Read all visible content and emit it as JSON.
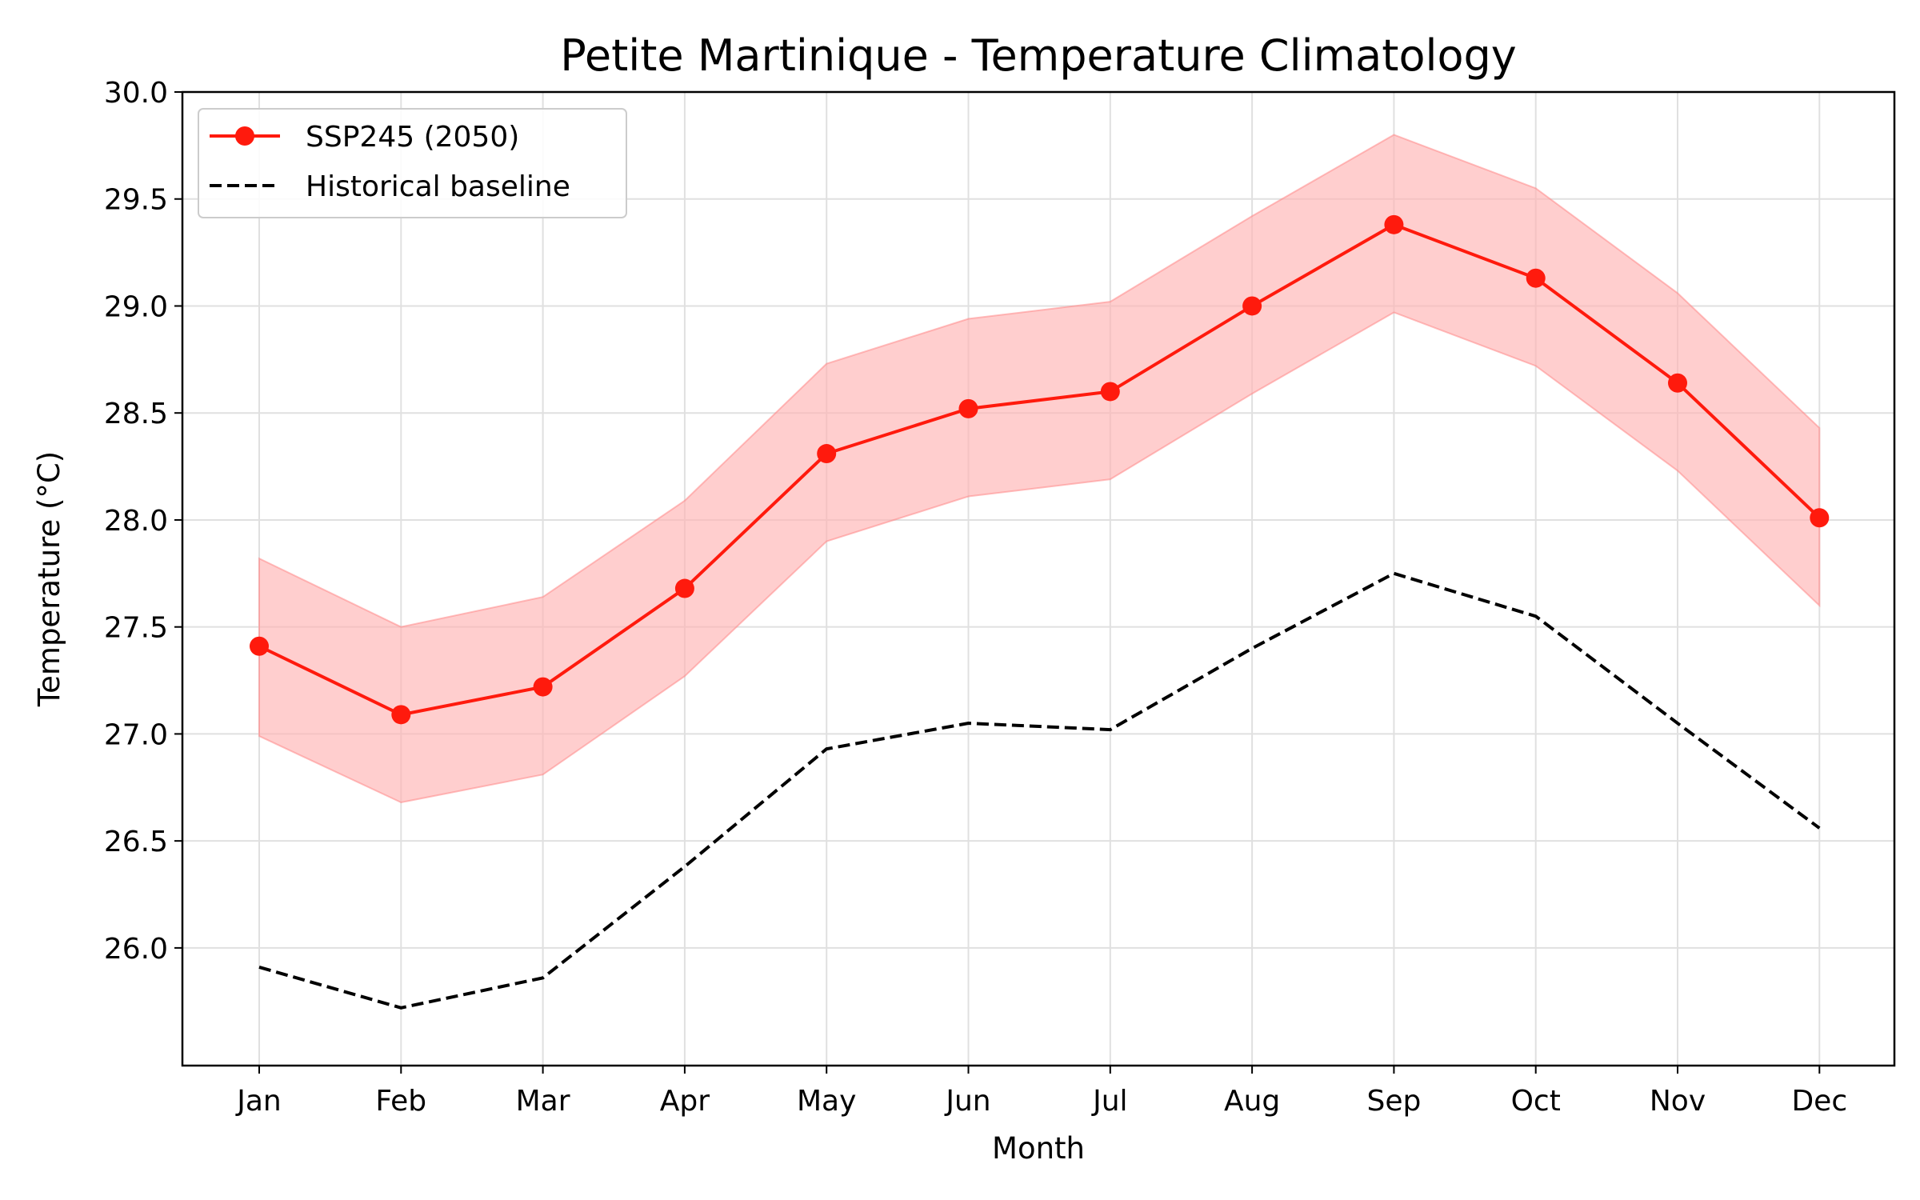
{
  "chart_data": {
    "type": "line",
    "title": "Petite Martinique - Temperature Climatology",
    "xlabel": "Month",
    "ylabel": "Temperature (°C)",
    "categories": [
      "Jan",
      "Feb",
      "Mar",
      "Apr",
      "May",
      "Jun",
      "Jul",
      "Aug",
      "Sep",
      "Oct",
      "Nov",
      "Dec"
    ],
    "ylim": [
      25.45,
      30.0
    ],
    "yticks": [
      "26.0",
      "26.5",
      "27.0",
      "27.5",
      "28.0",
      "28.5",
      "29.0",
      "29.5",
      "30.0"
    ],
    "grid": true,
    "legend_position": "upper-left",
    "series": [
      {
        "name": "SSP245 (2050)",
        "style": "solid-with-markers",
        "color": "#ff1a0d",
        "values": [
          27.41,
          27.09,
          27.22,
          27.68,
          28.31,
          28.52,
          28.6,
          29.0,
          29.38,
          29.13,
          28.64,
          28.01
        ],
        "band_lower": [
          26.99,
          26.68,
          26.81,
          27.27,
          27.9,
          28.11,
          28.19,
          28.59,
          28.97,
          28.72,
          28.23,
          27.6
        ],
        "band_upper": [
          27.82,
          27.5,
          27.64,
          28.09,
          28.73,
          28.94,
          29.02,
          29.42,
          29.8,
          29.55,
          29.06,
          28.43
        ],
        "band_color": "#ffb3b3"
      },
      {
        "name": "Historical baseline",
        "style": "dashed",
        "color": "#000000",
        "values": [
          25.91,
          25.72,
          25.86,
          26.38,
          26.93,
          27.05,
          27.02,
          27.4,
          27.75,
          27.55,
          27.05,
          26.56
        ]
      }
    ]
  }
}
